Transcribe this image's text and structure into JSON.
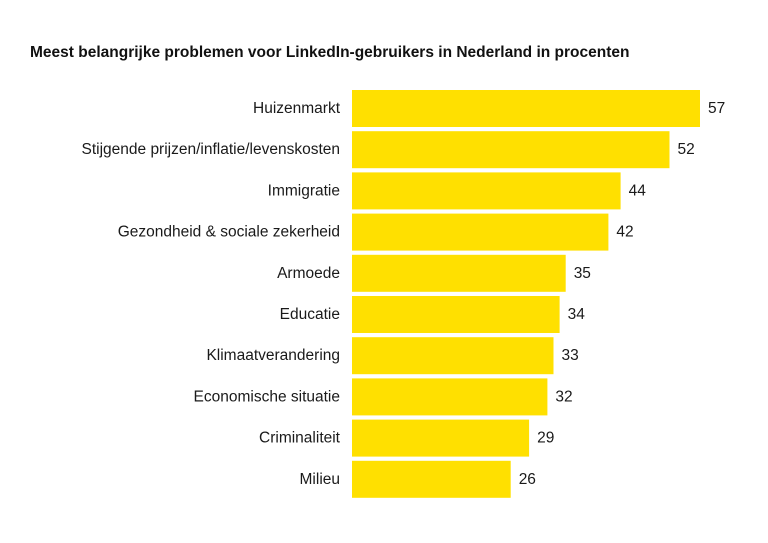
{
  "chart_data": {
    "type": "bar",
    "orientation": "horizontal",
    "title": "Meest belangrijke problemen voor LinkedIn-gebruikers in Nederland in procenten",
    "categories": [
      "Huizenmarkt",
      "Stijgende prijzen/inflatie/levenskosten",
      "Immigratie",
      "Gezondheid & sociale zekerheid",
      "Armoede",
      "Educatie",
      "Klimaatverandering",
      "Economische situatie",
      "Criminaliteit",
      "Milieu"
    ],
    "values": [
      57,
      52,
      44,
      42,
      35,
      34,
      33,
      32,
      29,
      26
    ],
    "xlim": [
      0,
      57
    ],
    "grid": false,
    "legend": "none",
    "bar_color": "#FFE000",
    "text_color": "#1a1a1a"
  }
}
